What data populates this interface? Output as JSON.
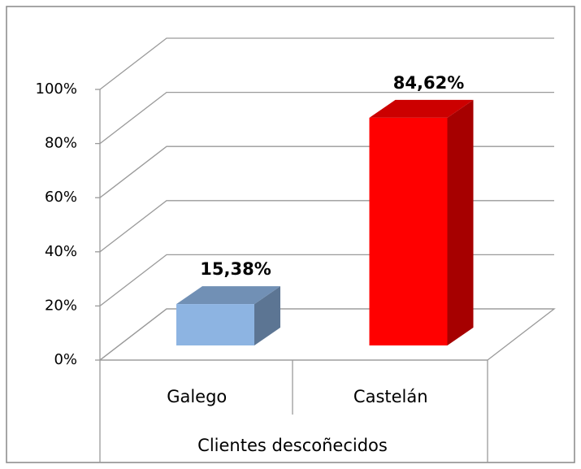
{
  "chart_data": {
    "type": "bar3d",
    "categories": [
      "Galego",
      "Castelán"
    ],
    "values": [
      15.38,
      84.62
    ],
    "value_labels": [
      "15,38%",
      "84,62%"
    ],
    "colors": [
      "#8db4e2",
      "#ff0000"
    ],
    "xlabel": "Clientes descoñecidos",
    "ylim": [
      0,
      100
    ],
    "yticks": [
      {
        "value": 0,
        "label": "0%"
      },
      {
        "value": 20,
        "label": "20%"
      },
      {
        "value": 40,
        "label": "40%"
      },
      {
        "value": 60,
        "label": "60%"
      },
      {
        "value": 80,
        "label": "80%"
      },
      {
        "value": 100,
        "label": "100%"
      }
    ],
    "grid": true
  }
}
